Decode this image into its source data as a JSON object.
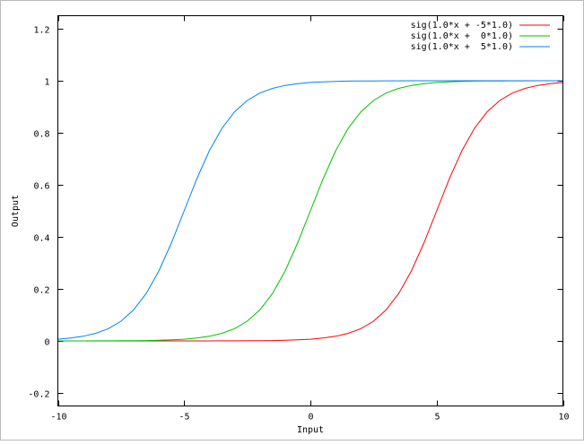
{
  "chart_data": {
    "type": "line",
    "title": "",
    "xlabel": "Input",
    "ylabel": "Output",
    "xlim": [
      -10,
      10
    ],
    "ylim": [
      -0.25,
      1.25
    ],
    "xticks": [
      -10,
      -5,
      0,
      5,
      10
    ],
    "xtick_labels": [
      "-10",
      "-5",
      "0",
      "5",
      "10"
    ],
    "yticks": [
      -0.2,
      0,
      0.2,
      0.4,
      0.6,
      0.8,
      1,
      1.2
    ],
    "ytick_labels": [
      "-0.2",
      "0",
      "0.2",
      "0.4",
      "0.6",
      "0.8",
      "1",
      "1.2"
    ],
    "grid": false,
    "legend_position": "top-right",
    "x": [
      -10,
      -9.5,
      -9,
      -8.5,
      -8,
      -7.5,
      -7,
      -6.5,
      -6,
      -5.5,
      -5,
      -4.5,
      -4,
      -3.5,
      -3,
      -2.5,
      -2,
      -1.5,
      -1,
      -0.5,
      0,
      0.5,
      1,
      1.5,
      2,
      2.5,
      3,
      3.5,
      4,
      4.5,
      5,
      5.5,
      6,
      6.5,
      7,
      7.5,
      8,
      8.5,
      9,
      9.5,
      10
    ],
    "series": [
      {
        "name": "sig(1.0*x + -5*1.0)",
        "color": "#ff0000",
        "values": [
          0,
          0,
          0,
          0,
          0,
          0,
          0,
          0,
          0,
          0,
          0,
          0.0001,
          0.0001,
          0.0002,
          0.0003,
          0.0006,
          0.0009,
          0.0015,
          0.0025,
          0.0041,
          0.0067,
          0.011,
          0.018,
          0.0293,
          0.0474,
          0.0759,
          0.1192,
          0.1824,
          0.2689,
          0.3775,
          0.5,
          0.6225,
          0.7311,
          0.8176,
          0.8808,
          0.9241,
          0.9526,
          0.9707,
          0.982,
          0.989,
          0.9933
        ]
      },
      {
        "name": "sig(1.0*x +  0*1.0)",
        "color": "#00c000",
        "values": [
          0,
          0.0001,
          0.0001,
          0.0002,
          0.0003,
          0.0006,
          0.0009,
          0.0015,
          0.0025,
          0.0041,
          0.0067,
          0.011,
          0.018,
          0.0293,
          0.0474,
          0.0759,
          0.1192,
          0.1824,
          0.2689,
          0.3775,
          0.5,
          0.6225,
          0.7311,
          0.8176,
          0.8808,
          0.9241,
          0.9526,
          0.9707,
          0.982,
          0.989,
          0.9933,
          0.9959,
          0.9975,
          0.9985,
          0.9991,
          0.9994,
          0.9997,
          0.9998,
          0.9999,
          0.9999,
          1
        ]
      },
      {
        "name": "sig(1.0*x +  5*1.0)",
        "color": "#0080ff",
        "values": [
          0.0067,
          0.011,
          0.018,
          0.0293,
          0.0474,
          0.0759,
          0.1192,
          0.1824,
          0.2689,
          0.3775,
          0.5,
          0.6225,
          0.7311,
          0.8176,
          0.8808,
          0.9241,
          0.9526,
          0.9707,
          0.982,
          0.989,
          0.9933,
          0.9959,
          0.9975,
          0.9985,
          0.9991,
          0.9994,
          0.9997,
          0.9998,
          0.9999,
          0.9999,
          1,
          1,
          1,
          1,
          1,
          1,
          1,
          1,
          1,
          1,
          1
        ]
      }
    ]
  }
}
